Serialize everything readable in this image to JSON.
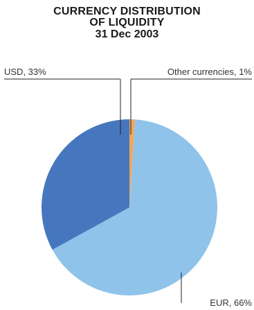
{
  "title_lines": [
    "CURRENCY DISTRIBUTION",
    "OF LIQUIDITY"
  ],
  "subtitle": "31 Dec 2003",
  "chart_data": {
    "type": "pie",
    "title": "CURRENCY DISTRIBUTION OF LIQUIDITY",
    "subtitle": "31 Dec 2003",
    "legend": "none",
    "slices": [
      {
        "label": "Other currencies, 1%",
        "category": "Other currencies",
        "value": 1,
        "color": "#f2a65a"
      },
      {
        "label": "EUR, 66%",
        "category": "EUR",
        "value": 66,
        "color": "#8fc3ea"
      },
      {
        "label": "USD, 33%",
        "category": "USD",
        "value": 33,
        "color": "#4677be"
      }
    ]
  }
}
